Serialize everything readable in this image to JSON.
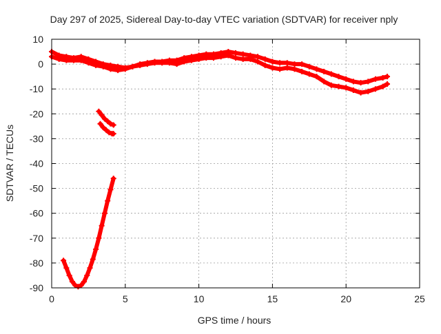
{
  "chart_data": {
    "type": "scatter",
    "title": "Day 297 of 2025, Sidereal Day-to-day VTEC variation (SDTVAR) for receiver nply",
    "xlabel": "GPS time / hours",
    "ylabel": "SDTVAR / TECUs",
    "xlim": [
      0,
      25
    ],
    "ylim": [
      -90,
      10
    ],
    "x_ticks": [
      0,
      5,
      10,
      15,
      20,
      25
    ],
    "y_ticks": [
      10,
      0,
      -10,
      -20,
      -30,
      -40,
      -50,
      -60,
      -70,
      -80,
      -90
    ],
    "grid": true,
    "legend": "none",
    "marker": "plus",
    "color": "#ff0000",
    "series": [
      {
        "name": "main-band-upper",
        "x": [
          0.0,
          0.5,
          1.0,
          1.5,
          2.0,
          2.5,
          3.0,
          3.5,
          4.0,
          4.5,
          5.0,
          5.5,
          6.0,
          6.5,
          7.0,
          7.5,
          8.0,
          8.5,
          9.0,
          9.5,
          10.0,
          10.5,
          11.0,
          11.5,
          12.0,
          12.5,
          13.0,
          13.5,
          14.0,
          14.5,
          15.0,
          15.5,
          16.0,
          16.5,
          17.0,
          17.5,
          18.0,
          18.5,
          19.0,
          19.5,
          20.0,
          20.5,
          21.0,
          21.5,
          22.0,
          22.5,
          22.8
        ],
        "y": [
          5,
          3.5,
          3,
          2.5,
          3,
          2,
          1,
          0,
          -0.5,
          -1,
          -1.5,
          -1,
          0,
          0.5,
          1,
          1,
          1.5,
          1.5,
          2.5,
          3,
          3.5,
          4,
          4,
          4.5,
          5,
          4.5,
          4,
          3.5,
          3,
          2,
          1,
          0.5,
          0.5,
          0,
          0,
          -1,
          -2,
          -3,
          -4,
          -5,
          -6,
          -7,
          -7.5,
          -7,
          -6,
          -5.5,
          -5
        ]
      },
      {
        "name": "main-band-lower",
        "x": [
          0.0,
          0.5,
          1.0,
          1.5,
          2.0,
          2.5,
          3.0,
          3.5,
          4.0,
          4.5,
          5.0,
          5.5,
          6.0,
          6.5,
          7.0,
          7.5,
          8.0,
          8.5,
          9.0,
          9.5,
          10.0,
          10.5,
          11.0,
          11.5,
          12.0,
          12.5,
          13.0,
          13.5,
          14.0,
          14.5,
          15.0,
          15.5,
          16.0,
          16.5,
          17.0,
          17.5,
          18.0,
          18.5,
          19.0,
          19.5,
          20.0,
          20.5,
          21.0,
          21.5,
          22.0,
          22.5,
          22.8
        ],
        "y": [
          3,
          2,
          1.5,
          1.5,
          1.5,
          0.5,
          -0.5,
          -1,
          -2,
          -2.5,
          -2,
          -1,
          -0.5,
          0,
          0.5,
          0.5,
          0.5,
          0,
          1,
          1.5,
          2,
          2.5,
          2.5,
          3,
          3.5,
          2.5,
          2,
          2,
          1,
          -0.5,
          -1.5,
          -2,
          -1.5,
          -2,
          -3,
          -4,
          -5,
          -7,
          -8.5,
          -9,
          -9.5,
          -10.5,
          -11.5,
          -11,
          -10,
          -9,
          -8
        ]
      },
      {
        "name": "short-arc-upper",
        "x": [
          3.2,
          3.4,
          3.6,
          3.8,
          4.0,
          4.2
        ],
        "y": [
          -19,
          -20.5,
          -22,
          -23,
          -24,
          -24.5
        ]
      },
      {
        "name": "short-arc-lower",
        "x": [
          3.3,
          3.5,
          3.7,
          3.9,
          4.1,
          4.2
        ],
        "y": [
          -24,
          -25.5,
          -26.5,
          -27.5,
          -28,
          -28
        ]
      },
      {
        "name": "deep-arc",
        "x": [
          0.8,
          1.0,
          1.2,
          1.4,
          1.6,
          1.8,
          2.0,
          2.2,
          2.4,
          2.6,
          2.8,
          3.0,
          3.2,
          3.4,
          3.6,
          3.8,
          4.0,
          4.2
        ],
        "y": [
          -79,
          -82,
          -85,
          -87.5,
          -89,
          -89.5,
          -89,
          -87.5,
          -85,
          -82,
          -78.5,
          -74.5,
          -70,
          -65,
          -60,
          -55,
          -50.5,
          -46
        ]
      }
    ]
  }
}
